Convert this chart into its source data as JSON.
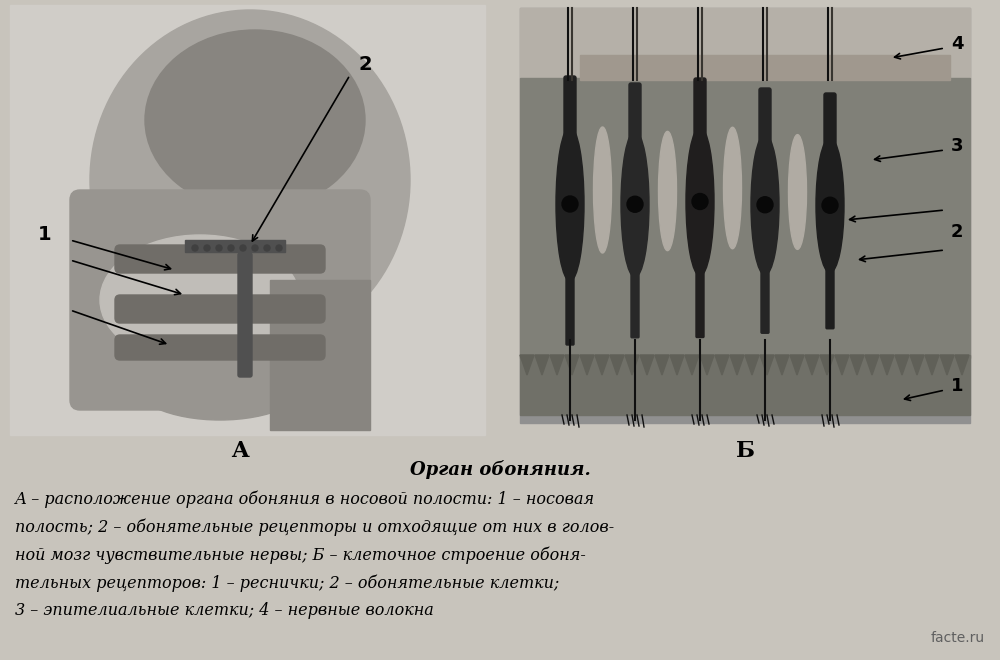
{
  "bg_color": "#c8c4bc",
  "fig_width": 10.0,
  "fig_height": 6.6,
  "title": "Орган обоняния.",
  "caption_lines": [
    "А – расположение органа обоняния в носовой полости: 1 – носовая",
    "полость; 2 – обонятельные рецепторы и отходящие от них в голов-",
    "ной мозг чувствительные нервы; Б – клеточное строение обоня-",
    "тельных рецепторов: 1 – реснички; 2 – обонятельные клетки;",
    "3 – эпителиальные клетки; 4 – нервные волокна"
  ],
  "label_A": "A",
  "label_B": "Б",
  "watermark": "facte.ru",
  "diagram_bg": "#b8b4ac",
  "left_panel_color": "#a0a0a0",
  "right_panel_color": "#808080",
  "caption_bg": "#c8c4bc"
}
